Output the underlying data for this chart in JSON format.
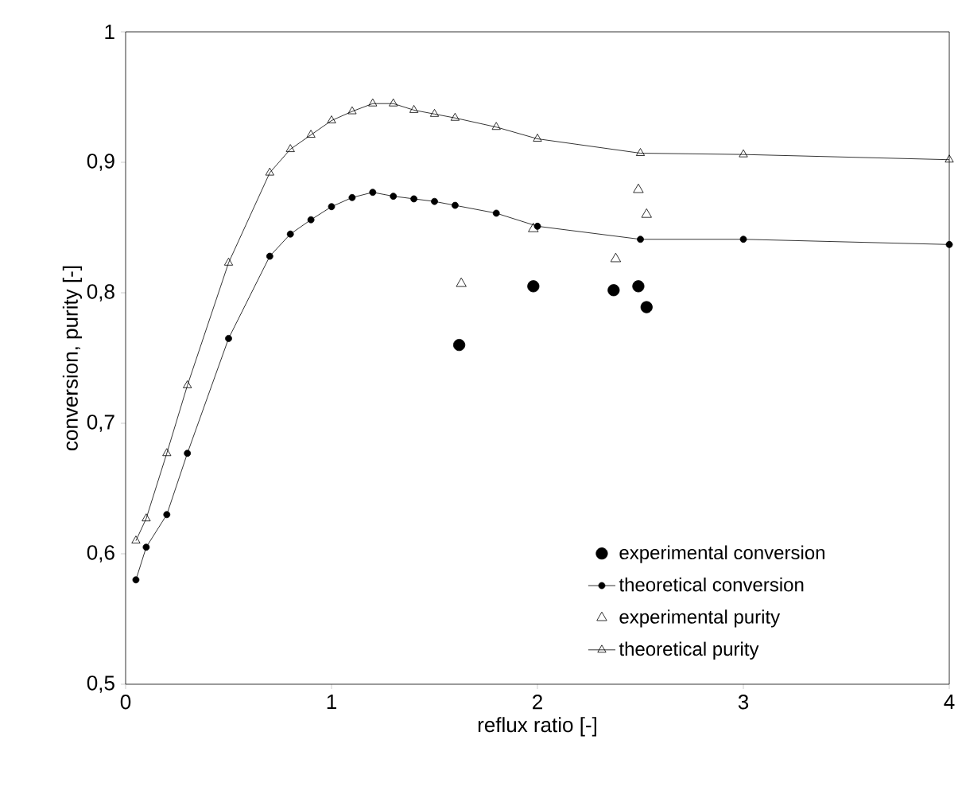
{
  "chart_data": {
    "type": "line",
    "xlabel": "reflux ratio [-]",
    "ylabel": "conversion, purity [-]",
    "xlim": [
      0,
      4
    ],
    "xticks": [
      0,
      1,
      2,
      3,
      4
    ],
    "ylim": [
      0.5,
      1
    ],
    "yticks": [
      {
        "value": 0.5,
        "label": "0,5"
      },
      {
        "value": 0.6,
        "label": "0,6"
      },
      {
        "value": 0.7,
        "label": "0,7"
      },
      {
        "value": 0.8,
        "label": "0,8"
      },
      {
        "value": 0.9,
        "label": "0,9"
      },
      {
        "value": 1,
        "label": "1"
      }
    ],
    "grid": false,
    "legend": "bottom right",
    "series": [
      {
        "name": "experimental conversion",
        "type": "scatter",
        "marker": "circle",
        "color": "#000000",
        "x": [
          1.62,
          1.98,
          2.37,
          2.49,
          2.53
        ],
        "values": [
          0.76,
          0.805,
          0.802,
          0.805,
          0.789
        ]
      },
      {
        "name": "theoretical conversion",
        "marker": "circle",
        "color": "#000000",
        "x": [
          0.05,
          0.1,
          0.2,
          0.3,
          0.5,
          0.7,
          0.8,
          0.9,
          1.0,
          1.1,
          1.2,
          1.3,
          1.4,
          1.5,
          1.6,
          1.8,
          2.0,
          2.5,
          3.0,
          4.0
        ],
        "values": [
          0.58,
          0.605,
          0.63,
          0.677,
          0.765,
          0.828,
          0.845,
          0.856,
          0.866,
          0.873,
          0.877,
          0.874,
          0.872,
          0.87,
          0.867,
          0.861,
          0.851,
          0.841,
          0.841,
          0.837
        ]
      },
      {
        "name": "experimental purity",
        "type": "scatter",
        "marker": "triangle",
        "color": "#000000",
        "x": [
          1.63,
          1.98,
          2.38,
          2.49,
          2.53
        ],
        "values": [
          0.807,
          0.849,
          0.826,
          0.879,
          0.86
        ]
      },
      {
        "name": "theoretical purity",
        "marker": "triangle",
        "color": "#000000",
        "x": [
          0.05,
          0.1,
          0.2,
          0.3,
          0.5,
          0.7,
          0.8,
          0.9,
          1.0,
          1.1,
          1.2,
          1.3,
          1.4,
          1.5,
          1.6,
          1.8,
          2.0,
          2.5,
          3.0,
          4.0
        ],
        "values": [
          0.61,
          0.627,
          0.677,
          0.729,
          0.823,
          0.892,
          0.91,
          0.921,
          0.932,
          0.939,
          0.945,
          0.945,
          0.94,
          0.937,
          0.934,
          0.927,
          0.918,
          0.907,
          0.906,
          0.902
        ]
      }
    ]
  }
}
